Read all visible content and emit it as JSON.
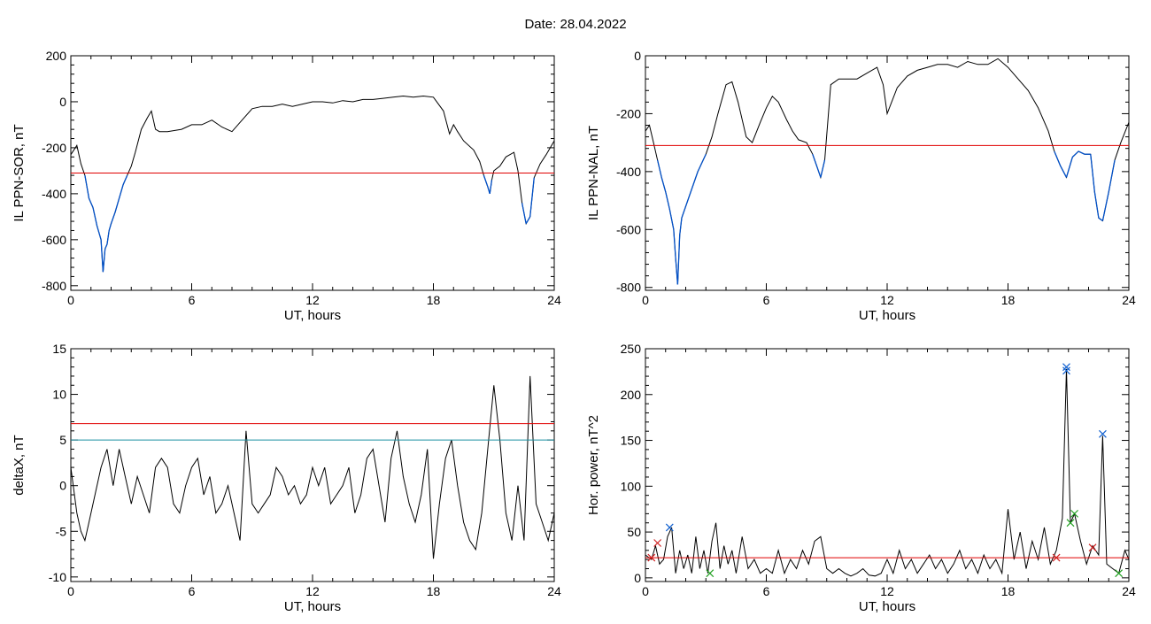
{
  "page": {
    "title": "Date:  28.04.2022"
  },
  "colors": {
    "threshold": "#e00000",
    "secondary_threshold": "#1a8fa0",
    "highlight": "#0050c8",
    "trace": "#000000",
    "marker_blue": "#1060d0",
    "marker_red": "#d02020",
    "marker_green": "#20a020"
  },
  "chart_data": [
    {
      "id": "sor",
      "type": "line",
      "title": "",
      "xlabel": "UT, hours",
      "ylabel": "IL PPN-SOR, nT",
      "xlim": [
        0,
        24
      ],
      "ylim": [
        -820,
        200
      ],
      "xticks": [
        "0",
        "6",
        "12",
        "18",
        "24"
      ],
      "yticks": [
        "-800",
        "-600",
        "-400",
        "-200",
        "0",
        "200"
      ],
      "threshold": -310,
      "highlight_below_threshold": true,
      "x": [
        0,
        0.3,
        0.5,
        0.7,
        0.9,
        1.1,
        1.3,
        1.5,
        1.6,
        1.7,
        1.8,
        1.9,
        2.0,
        2.2,
        2.4,
        2.6,
        2.8,
        3.0,
        3.2,
        3.5,
        3.8,
        4.0,
        4.2,
        4.4,
        4.8,
        5.5,
        6.0,
        6.5,
        7.0,
        7.5,
        8.0,
        8.5,
        9.0,
        9.5,
        10.0,
        10.5,
        11.0,
        11.5,
        12.0,
        12.5,
        13.0,
        13.5,
        14.0,
        14.5,
        15.0,
        15.5,
        16.0,
        16.5,
        17.0,
        17.5,
        18.0,
        18.5,
        18.8,
        19.0,
        19.2,
        19.5,
        20.0,
        20.3,
        20.5,
        20.7,
        20.8,
        20.9,
        21.0,
        21.3,
        21.6,
        22.0,
        22.2,
        22.4,
        22.6,
        22.8,
        23.0,
        23.3,
        23.6,
        24.0
      ],
      "values": [
        -230,
        -190,
        -270,
        -320,
        -420,
        -460,
        -540,
        -600,
        -740,
        -640,
        -620,
        -560,
        -530,
        -480,
        -420,
        -360,
        -320,
        -280,
        -220,
        -120,
        -70,
        -40,
        -120,
        -130,
        -130,
        -120,
        -100,
        -100,
        -80,
        -110,
        -130,
        -80,
        -30,
        -20,
        -20,
        -10,
        -20,
        -10,
        0,
        0,
        -5,
        5,
        0,
        10,
        10,
        15,
        20,
        25,
        20,
        25,
        20,
        -40,
        -140,
        -100,
        -130,
        -170,
        -210,
        -260,
        -320,
        -370,
        -400,
        -340,
        -300,
        -280,
        -240,
        -220,
        -300,
        -440,
        -530,
        -500,
        -330,
        -270,
        -230,
        -170
      ]
    },
    {
      "id": "nal",
      "type": "line",
      "title": "",
      "xlabel": "UT, hours",
      "ylabel": "IL PPN-NAL, nT",
      "xlim": [
        0,
        24
      ],
      "ylim": [
        -810,
        0
      ],
      "xticks": [
        "0",
        "6",
        "12",
        "18",
        "24"
      ],
      "yticks": [
        "-800",
        "-600",
        "-400",
        "-200",
        "0"
      ],
      "threshold": -310,
      "highlight_below_threshold": true,
      "x": [
        0,
        0.2,
        0.4,
        0.6,
        0.8,
        1.0,
        1.2,
        1.4,
        1.5,
        1.6,
        1.7,
        1.8,
        2.0,
        2.3,
        2.6,
        3.0,
        3.3,
        3.6,
        4.0,
        4.3,
        4.6,
        5.0,
        5.3,
        5.7,
        6.0,
        6.3,
        6.6,
        7.0,
        7.3,
        7.6,
        8.0,
        8.3,
        8.5,
        8.7,
        8.9,
        9.2,
        9.6,
        10.0,
        10.5,
        11.0,
        11.5,
        11.8,
        12.0,
        12.5,
        13.0,
        13.5,
        14.0,
        14.5,
        15.0,
        15.5,
        16.0,
        16.5,
        17.0,
        17.5,
        18.0,
        18.5,
        19.0,
        19.5,
        20.0,
        20.3,
        20.6,
        20.9,
        21.2,
        21.5,
        21.8,
        22.1,
        22.3,
        22.5,
        22.7,
        23.0,
        23.3,
        23.6,
        24.0
      ],
      "values": [
        -260,
        -240,
        -300,
        -360,
        -420,
        -470,
        -530,
        -600,
        -700,
        -790,
        -620,
        -560,
        -520,
        -460,
        -400,
        -340,
        -280,
        -200,
        -100,
        -90,
        -160,
        -280,
        -300,
        -230,
        -180,
        -140,
        -160,
        -220,
        -260,
        -290,
        -300,
        -340,
        -380,
        -420,
        -360,
        -100,
        -80,
        -80,
        -80,
        -60,
        -40,
        -100,
        -200,
        -110,
        -70,
        -50,
        -40,
        -30,
        -30,
        -40,
        -20,
        -30,
        -30,
        -10,
        -40,
        -80,
        -120,
        -180,
        -260,
        -330,
        -380,
        -420,
        -350,
        -330,
        -340,
        -340,
        -470,
        -560,
        -570,
        -470,
        -360,
        -300,
        -230
      ]
    },
    {
      "id": "deltax",
      "type": "line",
      "title": "",
      "xlabel": "UT, hours",
      "ylabel": "deltaX, nT",
      "xlim": [
        0,
        24
      ],
      "ylim": [
        -10.5,
        15
      ],
      "xticks": [
        "0",
        "6",
        "12",
        "18",
        "24"
      ],
      "yticks": [
        "-10",
        "-5",
        "0",
        "5",
        "10",
        "15"
      ],
      "thresholds": [
        6.8,
        5.0
      ],
      "x": [
        0,
        0.3,
        0.5,
        0.7,
        0.9,
        1.2,
        1.5,
        1.8,
        2.1,
        2.4,
        2.7,
        3.0,
        3.3,
        3.6,
        3.9,
        4.2,
        4.5,
        4.8,
        5.1,
        5.4,
        5.7,
        6.0,
        6.3,
        6.6,
        6.9,
        7.2,
        7.5,
        7.8,
        8.1,
        8.4,
        8.7,
        9.0,
        9.3,
        9.6,
        9.9,
        10.2,
        10.5,
        10.8,
        11.1,
        11.4,
        11.7,
        12.0,
        12.3,
        12.6,
        12.9,
        13.2,
        13.5,
        13.8,
        14.1,
        14.4,
        14.7,
        15.0,
        15.3,
        15.6,
        15.9,
        16.2,
        16.5,
        16.8,
        17.1,
        17.4,
        17.7,
        18.0,
        18.3,
        18.6,
        18.9,
        19.2,
        19.5,
        19.8,
        20.1,
        20.4,
        20.7,
        21.0,
        21.3,
        21.6,
        21.9,
        22.2,
        22.5,
        22.8,
        23.1,
        23.4,
        23.7,
        24.0
      ],
      "values": [
        2,
        -3,
        -5,
        -6,
        -4,
        -1,
        2,
        4,
        0,
        4,
        1,
        -2,
        1,
        -1,
        -3,
        2,
        3,
        2,
        -2,
        -3,
        0,
        2,
        3,
        -1,
        1,
        -3,
        -2,
        0,
        -3,
        -6,
        6,
        -2,
        -3,
        -2,
        -1,
        2,
        1,
        -1,
        0,
        -2,
        -1,
        2,
        0,
        2,
        -2,
        -1,
        0,
        2,
        -3,
        -1,
        3,
        4,
        0,
        -4,
        3,
        6,
        1,
        -2,
        -4,
        -1,
        4,
        -8,
        -2,
        3,
        5,
        0,
        -4,
        -6,
        -7,
        -3,
        4,
        11,
        5,
        -3,
        -6,
        0,
        -6,
        12,
        -2,
        -4,
        -6,
        -3
      ]
    },
    {
      "id": "power",
      "type": "line",
      "title": "",
      "xlabel": "UT, hours",
      "ylabel": "Hor. power, nT^2",
      "xlim": [
        0,
        24
      ],
      "ylim": [
        -4,
        250
      ],
      "xticks": [
        "0",
        "6",
        "12",
        "18",
        "24"
      ],
      "yticks": [
        "0",
        "50",
        "100",
        "150",
        "200",
        "250"
      ],
      "threshold": 22,
      "x": [
        0,
        0.3,
        0.5,
        0.7,
        0.9,
        1.1,
        1.3,
        1.5,
        1.7,
        1.9,
        2.1,
        2.3,
        2.5,
        2.7,
        2.9,
        3.1,
        3.3,
        3.5,
        3.7,
        3.9,
        4.1,
        4.3,
        4.5,
        4.8,
        5.1,
        5.4,
        5.7,
        6.0,
        6.3,
        6.6,
        6.9,
        7.2,
        7.5,
        7.8,
        8.1,
        8.4,
        8.7,
        9.0,
        9.3,
        9.6,
        9.9,
        10.2,
        10.5,
        10.8,
        11.1,
        11.4,
        11.7,
        12.0,
        12.3,
        12.6,
        12.9,
        13.2,
        13.5,
        13.8,
        14.1,
        14.4,
        14.7,
        15.0,
        15.3,
        15.6,
        15.9,
        16.2,
        16.5,
        16.8,
        17.1,
        17.4,
        17.7,
        18.0,
        18.3,
        18.6,
        18.9,
        19.2,
        19.5,
        19.8,
        20.1,
        20.4,
        20.7,
        20.9,
        21.1,
        21.3,
        21.6,
        21.9,
        22.2,
        22.5,
        22.7,
        22.9,
        23.2,
        23.5,
        23.8,
        24.0
      ],
      "values": [
        25,
        20,
        35,
        15,
        20,
        45,
        55,
        5,
        30,
        10,
        25,
        5,
        45,
        10,
        30,
        5,
        40,
        60,
        10,
        35,
        15,
        30,
        5,
        45,
        10,
        20,
        5,
        10,
        5,
        30,
        5,
        20,
        10,
        30,
        15,
        40,
        45,
        10,
        5,
        10,
        5,
        2,
        5,
        10,
        3,
        2,
        5,
        20,
        5,
        30,
        10,
        20,
        5,
        15,
        25,
        10,
        20,
        5,
        15,
        30,
        10,
        20,
        5,
        25,
        10,
        20,
        5,
        75,
        20,
        50,
        10,
        40,
        20,
        55,
        15,
        30,
        65,
        228,
        60,
        70,
        40,
        15,
        35,
        25,
        155,
        15,
        10,
        5,
        30,
        20
      ],
      "markers": [
        {
          "x": 1.2,
          "y": 55,
          "color": "blue"
        },
        {
          "x": 20.9,
          "y": 230,
          "color": "blue"
        },
        {
          "x": 20.9,
          "y": 226,
          "color": "blue"
        },
        {
          "x": 22.7,
          "y": 157,
          "color": "blue"
        },
        {
          "x": 0.6,
          "y": 38,
          "color": "red"
        },
        {
          "x": 0.3,
          "y": 22,
          "color": "red"
        },
        {
          "x": 20.4,
          "y": 22,
          "color": "red"
        },
        {
          "x": 22.2,
          "y": 33,
          "color": "red"
        },
        {
          "x": 3.2,
          "y": 5,
          "color": "green"
        },
        {
          "x": 21.1,
          "y": 60,
          "color": "green"
        },
        {
          "x": 21.3,
          "y": 70,
          "color": "green"
        },
        {
          "x": 23.5,
          "y": 5,
          "color": "green"
        }
      ]
    }
  ]
}
